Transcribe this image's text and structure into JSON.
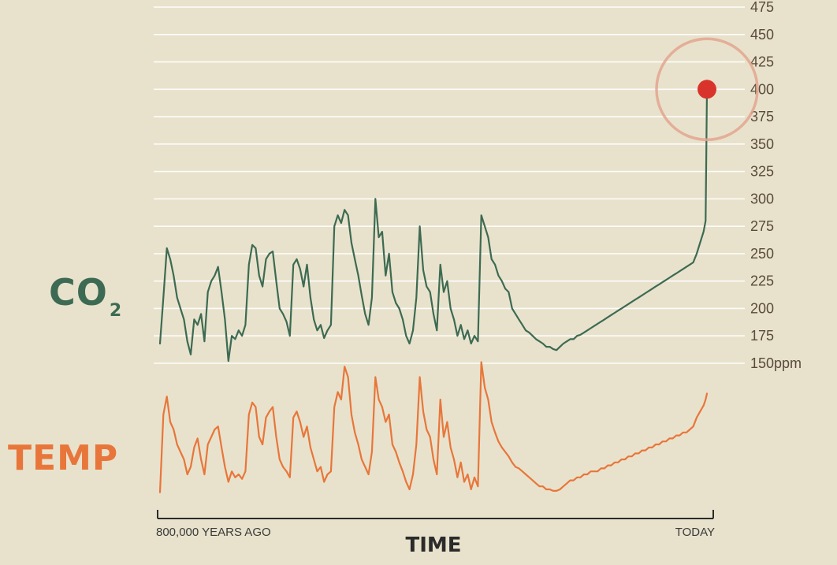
{
  "labels": {
    "co2": "CO",
    "co2_sub": "2",
    "temp": "TEMP",
    "time": "TIME",
    "start": "800,000 YEARS AGO",
    "end": "TODAY"
  },
  "colors": {
    "background": "#e8e2cc",
    "co2_line": "#3d6a52",
    "temp_line": "#e8763a",
    "highlight": "#d9342b",
    "ring": "#e3a48e",
    "grid": "#ffffff",
    "tick_text": "#5a4a3a"
  },
  "chart_data": [
    {
      "type": "line",
      "title": "",
      "series": [
        {
          "name": "CO2"
        }
      ],
      "x_range_labels": [
        "800,000 YEARS AGO",
        "TODAY"
      ],
      "xlabel": "TIME",
      "ylim": [
        150,
        475
      ],
      "yticks": [
        150,
        175,
        200,
        225,
        250,
        275,
        300,
        325,
        350,
        375,
        400,
        425,
        450,
        475
      ],
      "ytick_labels": [
        "150ppm",
        "175",
        "200",
        "225",
        "250",
        "275",
        "300",
        "325",
        "350",
        "375",
        "400",
        "425",
        "450",
        "475"
      ],
      "grid": true,
      "x_kyr_ago": [
        800,
        795,
        790,
        785,
        780,
        775,
        770,
        765,
        760,
        755,
        750,
        745,
        740,
        735,
        730,
        725,
        720,
        715,
        710,
        705,
        700,
        695,
        690,
        685,
        680,
        675,
        670,
        665,
        660,
        655,
        650,
        645,
        640,
        635,
        630,
        625,
        620,
        615,
        610,
        605,
        600,
        595,
        590,
        585,
        580,
        575,
        570,
        565,
        560,
        555,
        550,
        545,
        540,
        535,
        530,
        525,
        520,
        515,
        510,
        505,
        500,
        495,
        490,
        485,
        480,
        475,
        470,
        465,
        460,
        455,
        450,
        445,
        440,
        435,
        430,
        425,
        420,
        415,
        410,
        405,
        400,
        395,
        390,
        385,
        380,
        375,
        370,
        365,
        360,
        355,
        350,
        345,
        340,
        335,
        330,
        325,
        320,
        315,
        310,
        305,
        300,
        295,
        290,
        285,
        280,
        275,
        270,
        265,
        260,
        255,
        250,
        245,
        240,
        235,
        230,
        225,
        220,
        215,
        210,
        205,
        200,
        195,
        190,
        185,
        180,
        175,
        170,
        165,
        160,
        155,
        150,
        145,
        140,
        135,
        130,
        125,
        120,
        115,
        110,
        105,
        100,
        95,
        90,
        85,
        80,
        75,
        70,
        65,
        60,
        55,
        50,
        45,
        40,
        35,
        30,
        25,
        20,
        15,
        10,
        5,
        2,
        0
      ],
      "values": [
        168,
        210,
        255,
        245,
        230,
        210,
        200,
        190,
        170,
        158,
        190,
        185,
        195,
        170,
        215,
        225,
        230,
        238,
        215,
        190,
        152,
        175,
        172,
        180,
        175,
        185,
        240,
        258,
        255,
        230,
        220,
        245,
        250,
        252,
        225,
        200,
        195,
        188,
        175,
        240,
        245,
        236,
        220,
        240,
        210,
        190,
        180,
        185,
        173,
        180,
        185,
        275,
        285,
        278,
        290,
        285,
        260,
        245,
        230,
        212,
        195,
        185,
        210,
        300,
        265,
        270,
        230,
        250,
        215,
        205,
        200,
        190,
        175,
        168,
        180,
        210,
        275,
        235,
        220,
        215,
        195,
        180,
        240,
        215,
        225,
        200,
        190,
        175,
        185,
        172,
        180,
        168,
        175,
        170,
        285,
        275,
        265,
        245,
        240,
        230,
        225,
        218,
        215,
        200,
        195,
        190,
        185,
        180,
        178,
        175,
        172,
        170,
        168,
        165,
        165,
        163,
        162,
        165,
        168,
        170,
        172,
        172,
        175,
        176,
        178,
        180,
        182,
        184,
        186,
        188,
        190,
        192,
        194,
        196,
        198,
        200,
        202,
        204,
        206,
        208,
        210,
        212,
        214,
        216,
        218,
        220,
        222,
        224,
        226,
        228,
        230,
        232,
        234,
        236,
        238,
        240,
        242,
        250,
        260,
        270,
        280,
        400
      ],
      "highlight": {
        "value": 400,
        "label": "400"
      }
    },
    {
      "type": "line",
      "title": "",
      "series": [
        {
          "name": "TEMP"
        }
      ],
      "x_range_labels": [
        "800,000 YEARS AGO",
        "TODAY"
      ],
      "xlabel": "TIME",
      "ylim": [
        0,
        100
      ],
      "x_kyr_ago": [
        800,
        795,
        790,
        785,
        780,
        775,
        770,
        765,
        760,
        755,
        750,
        745,
        740,
        735,
        730,
        725,
        720,
        715,
        710,
        705,
        700,
        695,
        690,
        685,
        680,
        675,
        670,
        665,
        660,
        655,
        650,
        645,
        640,
        635,
        630,
        625,
        620,
        615,
        610,
        605,
        600,
        595,
        590,
        585,
        580,
        575,
        570,
        565,
        560,
        555,
        550,
        545,
        540,
        535,
        530,
        525,
        520,
        515,
        510,
        505,
        500,
        495,
        490,
        485,
        480,
        475,
        470,
        465,
        460,
        455,
        450,
        445,
        440,
        435,
        430,
        425,
        420,
        415,
        410,
        405,
        400,
        395,
        390,
        385,
        380,
        375,
        370,
        365,
        360,
        355,
        350,
        345,
        340,
        335,
        330,
        325,
        320,
        315,
        310,
        305,
        300,
        295,
        290,
        285,
        280,
        275,
        270,
        265,
        260,
        255,
        250,
        245,
        240,
        235,
        230,
        225,
        220,
        215,
        210,
        205,
        200,
        195,
        190,
        185,
        180,
        175,
        170,
        165,
        160,
        155,
        150,
        145,
        140,
        135,
        130,
        125,
        120,
        115,
        110,
        105,
        100,
        95,
        90,
        85,
        80,
        75,
        70,
        65,
        60,
        55,
        50,
        45,
        40,
        35,
        30,
        25,
        20,
        15,
        10,
        5,
        2,
        0
      ],
      "values": [
        8,
        60,
        72,
        55,
        50,
        40,
        35,
        30,
        20,
        25,
        38,
        44,
        30,
        20,
        40,
        45,
        50,
        52,
        38,
        25,
        15,
        22,
        18,
        20,
        17,
        22,
        60,
        68,
        65,
        45,
        40,
        58,
        62,
        65,
        45,
        30,
        25,
        22,
        18,
        58,
        62,
        55,
        45,
        52,
        38,
        30,
        22,
        25,
        15,
        20,
        22,
        65,
        75,
        70,
        92,
        85,
        60,
        48,
        40,
        30,
        25,
        20,
        35,
        85,
        70,
        65,
        55,
        60,
        40,
        35,
        28,
        22,
        15,
        10,
        20,
        40,
        85,
        62,
        50,
        45,
        30,
        20,
        70,
        45,
        55,
        38,
        30,
        18,
        28,
        15,
        20,
        10,
        18,
        12,
        95,
        78,
        70,
        55,
        48,
        42,
        38,
        35,
        32,
        28,
        25,
        24,
        22,
        20,
        18,
        16,
        14,
        12,
        12,
        10,
        10,
        9,
        9,
        10,
        12,
        14,
        16,
        16,
        18,
        18,
        20,
        20,
        22,
        22,
        22,
        24,
        24,
        26,
        26,
        28,
        28,
        30,
        30,
        32,
        32,
        34,
        34,
        36,
        36,
        38,
        38,
        40,
        40,
        42,
        42,
        44,
        44,
        46,
        46,
        48,
        48,
        50,
        52,
        58,
        62,
        66,
        70,
        74
      ]
    }
  ]
}
